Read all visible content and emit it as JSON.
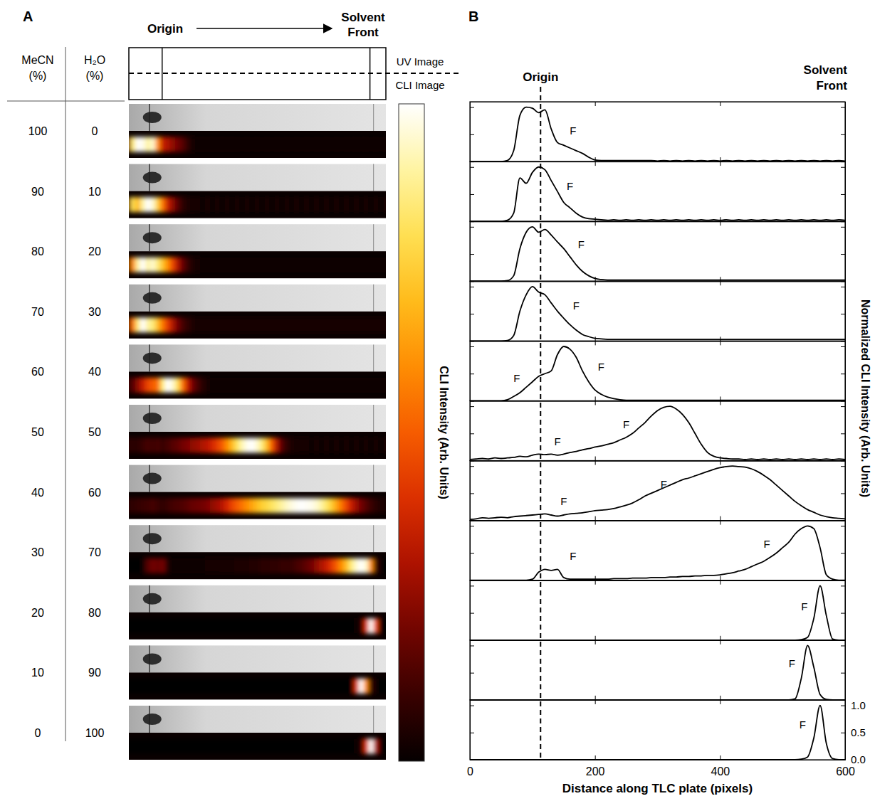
{
  "chart_data": {
    "type": "line",
    "panel_labels": [
      "A",
      "B"
    ],
    "table_headers": [
      "MeCN (%)",
      "H₂O (%)"
    ],
    "image_labels": [
      "UV Image",
      "CLI Image"
    ],
    "colorbar_label": "CLI Intensity (Arb. Units)",
    "origin": {
      "label": "Origin",
      "x": 113
    },
    "solvent_front": {
      "label": "Solvent Front",
      "x": 565
    },
    "x_label": "Distance along TLC plate (pixels)",
    "y_label": "Normalized CLI Intensity (Arb. Units)",
    "xlim": [
      0,
      600
    ],
    "xticks": [
      0,
      200,
      400,
      600
    ],
    "ylim": [
      0,
      1.1
    ],
    "yticks": [
      {
        "value": 0,
        "label": "0.0"
      },
      {
        "value": 0.5,
        "label": "0.5"
      },
      {
        "value": 1,
        "label": "1.0"
      }
    ],
    "x": [
      0,
      10,
      20,
      30,
      40,
      50,
      60,
      70,
      80,
      90,
      100,
      110,
      120,
      130,
      140,
      150,
      160,
      170,
      180,
      190,
      200,
      210,
      220,
      230,
      240,
      250,
      260,
      270,
      280,
      290,
      300,
      310,
      320,
      330,
      340,
      350,
      360,
      370,
      380,
      390,
      400,
      410,
      420,
      430,
      440,
      450,
      460,
      470,
      480,
      490,
      500,
      510,
      520,
      530,
      540,
      550,
      560,
      570,
      580,
      590,
      600
    ],
    "series": [
      {
        "mecn": 100,
        "h2o": 0,
        "annotations": [
          {
            "text": "F",
            "x": 165,
            "y": 0.5
          }
        ],
        "values": [
          0,
          0,
          0,
          0,
          0,
          0,
          0.02,
          0.2,
          0.85,
          1.0,
          0.98,
          0.9,
          0.95,
          0.6,
          0.35,
          0.3,
          0.25,
          0.2,
          0.15,
          0.08,
          0.03,
          0.02,
          0.02,
          0.02,
          0.02,
          0.02,
          0.02,
          0.02,
          0.02,
          0.02,
          0.01,
          0.02,
          0.01,
          0.02,
          0.01,
          0.02,
          0.01,
          0.02,
          0.01,
          0.02,
          0.01,
          0.02,
          0.01,
          0.02,
          0.01,
          0.02,
          0.01,
          0.02,
          0.01,
          0.02,
          0.01,
          0.02,
          0.01,
          0.02,
          0.01,
          0.02,
          0.01,
          0.02,
          0.01,
          0.02,
          0.01
        ]
      },
      {
        "mecn": 90,
        "h2o": 10,
        "annotations": [
          {
            "text": "F",
            "x": 160,
            "y": 0.58
          }
        ],
        "values": [
          0,
          0,
          0,
          0,
          0,
          0,
          0.02,
          0.15,
          0.8,
          0.7,
          0.9,
          1.0,
          0.95,
          0.75,
          0.55,
          0.35,
          0.25,
          0.15,
          0.08,
          0.05,
          0.04,
          0.03,
          0.02,
          0.03,
          0.02,
          0.03,
          0.02,
          0.03,
          0.02,
          0.03,
          0.02,
          0.03,
          0.02,
          0.03,
          0.02,
          0.03,
          0.02,
          0.03,
          0.02,
          0.03,
          0.02,
          0.03,
          0.02,
          0.03,
          0.02,
          0.03,
          0.02,
          0.03,
          0.02,
          0.03,
          0.02,
          0.03,
          0.02,
          0.03,
          0.02,
          0.03,
          0.02,
          0.03,
          0.02,
          0.03,
          0.02
        ]
      },
      {
        "mecn": 80,
        "h2o": 20,
        "annotations": [
          {
            "text": "F",
            "x": 178,
            "y": 0.6
          }
        ],
        "values": [
          0,
          0,
          0,
          0,
          0,
          0,
          0.01,
          0.1,
          0.6,
          0.9,
          1.0,
          0.9,
          0.95,
          0.85,
          0.72,
          0.6,
          0.45,
          0.3,
          0.18,
          0.1,
          0.05,
          0.03,
          0.02,
          0.02,
          0.02,
          0.02,
          0.02,
          0.02,
          0.02,
          0.02,
          0.02,
          0.02,
          0.02,
          0.02,
          0.02,
          0.02,
          0.02,
          0.02,
          0.02,
          0.02,
          0.02,
          0.02,
          0.02,
          0.02,
          0.02,
          0.02,
          0.02,
          0.02,
          0.02,
          0.02,
          0.02,
          0.02,
          0.02,
          0.02,
          0.02,
          0.02,
          0.02,
          0.02,
          0.02,
          0.02,
          0.02
        ]
      },
      {
        "mecn": 70,
        "h2o": 30,
        "annotations": [
          {
            "text": "F",
            "x": 170,
            "y": 0.58
          }
        ],
        "values": [
          0,
          0,
          0,
          0,
          0,
          0,
          0.01,
          0.1,
          0.55,
          0.85,
          1.0,
          0.9,
          0.85,
          0.7,
          0.55,
          0.42,
          0.3,
          0.2,
          0.12,
          0.08,
          0.05,
          0.04,
          0.03,
          0.03,
          0.03,
          0.03,
          0.03,
          0.03,
          0.03,
          0.03,
          0.03,
          0.03,
          0.03,
          0.03,
          0.03,
          0.03,
          0.03,
          0.03,
          0.03,
          0.03,
          0.03,
          0.03,
          0.03,
          0.03,
          0.03,
          0.03,
          0.03,
          0.03,
          0.03,
          0.03,
          0.03,
          0.03,
          0.03,
          0.03,
          0.03,
          0.03,
          0.03,
          0.03,
          0.03,
          0.03,
          0.03
        ]
      },
      {
        "mecn": 60,
        "h2o": 40,
        "annotations": [
          {
            "text": "F",
            "x": 75,
            "y": 0.35
          },
          {
            "text": "F",
            "x": 210,
            "y": 0.55
          }
        ],
        "values": [
          0,
          0,
          0,
          0,
          0,
          0,
          0.02,
          0.08,
          0.15,
          0.25,
          0.35,
          0.45,
          0.5,
          0.55,
          0.85,
          1.0,
          0.95,
          0.8,
          0.55,
          0.35,
          0.2,
          0.12,
          0.07,
          0.04,
          0.02,
          0.01,
          0.01,
          0.01,
          0.01,
          0.01,
          0.01,
          0.01,
          0.01,
          0.01,
          0.01,
          0.01,
          0.01,
          0.01,
          0.01,
          0.01,
          0.01,
          0.01,
          0.01,
          0.01,
          0.01,
          0.01,
          0.01,
          0.01,
          0.01,
          0.01,
          0.01,
          0.01,
          0.01,
          0.01,
          0.01,
          0.01,
          0.01,
          0.01,
          0.01,
          0.01,
          0.01
        ]
      },
      {
        "mecn": 50,
        "h2o": 50,
        "annotations": [
          {
            "text": "F",
            "x": 140,
            "y": 0.28
          },
          {
            "text": "F",
            "x": 250,
            "y": 0.6
          }
        ],
        "values": [
          0.02,
          0.03,
          0.04,
          0.03,
          0.05,
          0.04,
          0.05,
          0.06,
          0.08,
          0.07,
          0.1,
          0.12,
          0.11,
          0.12,
          0.1,
          0.12,
          0.15,
          0.17,
          0.2,
          0.22,
          0.25,
          0.27,
          0.3,
          0.33,
          0.38,
          0.43,
          0.5,
          0.6,
          0.7,
          0.82,
          0.92,
          0.98,
          1.0,
          0.95,
          0.85,
          0.7,
          0.5,
          0.3,
          0.15,
          0.08,
          0.05,
          0.04,
          0.03,
          0.03,
          0.02,
          0.03,
          0.02,
          0.03,
          0.02,
          0.03,
          0.02,
          0.03,
          0.02,
          0.03,
          0.02,
          0.03,
          0.02,
          0.03,
          0.02,
          0.03,
          0.02
        ]
      },
      {
        "mecn": 40,
        "h2o": 60,
        "annotations": [
          {
            "text": "F",
            "x": 150,
            "y": 0.28
          },
          {
            "text": "F",
            "x": 310,
            "y": 0.6
          }
        ],
        "values": [
          0.02,
          0.03,
          0.05,
          0.04,
          0.05,
          0.06,
          0.05,
          0.07,
          0.08,
          0.09,
          0.1,
          0.11,
          0.12,
          0.1,
          0.08,
          0.1,
          0.12,
          0.13,
          0.14,
          0.16,
          0.18,
          0.19,
          0.2,
          0.22,
          0.25,
          0.28,
          0.32,
          0.38,
          0.45,
          0.5,
          0.55,
          0.6,
          0.65,
          0.7,
          0.75,
          0.78,
          0.82,
          0.86,
          0.9,
          0.94,
          0.97,
          0.99,
          1.0,
          0.99,
          0.98,
          0.95,
          0.9,
          0.83,
          0.75,
          0.65,
          0.55,
          0.45,
          0.35,
          0.27,
          0.2,
          0.15,
          0.1,
          0.07,
          0.05,
          0.04,
          0.03
        ]
      },
      {
        "mecn": 30,
        "h2o": 70,
        "annotations": [
          {
            "text": "F",
            "x": 165,
            "y": 0.38
          },
          {
            "text": "F",
            "x": 475,
            "y": 0.6
          }
        ],
        "values": [
          0,
          0,
          0,
          0,
          0,
          0,
          0,
          0,
          0,
          0,
          0.02,
          0.15,
          0.2,
          0.18,
          0.2,
          0.05,
          0.02,
          0.02,
          0.02,
          0.02,
          0.02,
          0.02,
          0.02,
          0.03,
          0.03,
          0.03,
          0.04,
          0.04,
          0.04,
          0.05,
          0.05,
          0.05,
          0.06,
          0.06,
          0.07,
          0.07,
          0.08,
          0.08,
          0.09,
          0.09,
          0.1,
          0.12,
          0.14,
          0.17,
          0.2,
          0.25,
          0.3,
          0.35,
          0.42,
          0.5,
          0.6,
          0.7,
          0.85,
          0.95,
          1.0,
          0.95,
          0.6,
          0.1,
          0.02,
          0,
          0
        ]
      },
      {
        "mecn": 20,
        "h2o": 80,
        "annotations": [
          {
            "text": "F",
            "x": 535,
            "y": 0.55
          }
        ],
        "values": [
          0,
          0,
          0,
          0,
          0,
          0,
          0,
          0,
          0,
          0,
          0,
          0,
          0,
          0,
          0,
          0,
          0,
          0,
          0,
          0,
          0,
          0,
          0,
          0,
          0,
          0,
          0,
          0,
          0,
          0,
          0,
          0,
          0,
          0,
          0,
          0,
          0,
          0,
          0,
          0,
          0,
          0,
          0,
          0,
          0,
          0,
          0,
          0,
          0,
          0,
          0,
          0,
          0,
          0.01,
          0.05,
          0.4,
          1.0,
          0.45,
          0.02,
          0,
          0
        ]
      },
      {
        "mecn": 10,
        "h2o": 90,
        "annotations": [
          {
            "text": "F",
            "x": 515,
            "y": 0.6
          }
        ],
        "values": [
          0,
          0,
          0,
          0,
          0,
          0,
          0,
          0,
          0,
          0,
          0,
          0,
          0,
          0,
          0,
          0,
          0,
          0,
          0,
          0,
          0,
          0,
          0,
          0,
          0,
          0,
          0,
          0,
          0,
          0,
          0,
          0,
          0,
          0,
          0,
          0,
          0,
          0,
          0,
          0,
          0,
          0,
          0,
          0,
          0,
          0,
          0,
          0,
          0,
          0,
          0,
          0,
          0.02,
          0.4,
          1.0,
          0.6,
          0.1,
          0.01,
          0,
          0,
          0
        ]
      },
      {
        "mecn": 0,
        "h2o": 100,
        "annotations": [
          {
            "text": "F",
            "x": 532,
            "y": 0.58
          }
        ],
        "values": [
          0,
          0,
          0,
          0,
          0,
          0,
          0,
          0,
          0,
          0,
          0,
          0,
          0,
          0,
          0,
          0,
          0,
          0,
          0,
          0,
          0,
          0,
          0,
          0,
          0,
          0,
          0,
          0,
          0,
          0,
          0,
          0,
          0,
          0,
          0,
          0,
          0,
          0,
          0,
          0,
          0,
          0,
          0,
          0,
          0,
          0,
          0,
          0,
          0,
          0,
          0,
          0,
          0,
          0.01,
          0.05,
          0.4,
          1.0,
          0.3,
          0.02,
          0,
          0
        ]
      }
    ]
  }
}
